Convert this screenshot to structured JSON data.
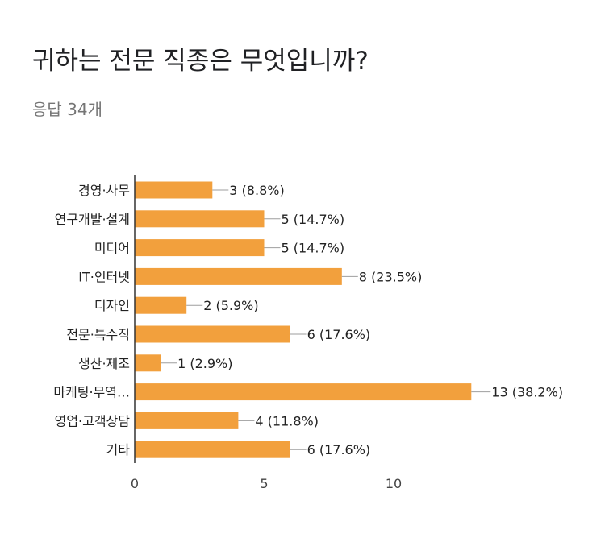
{
  "header": {
    "title": "귀하는 전문 직종은 무엇입니까?",
    "response_count": "응답 34개"
  },
  "chart_data": {
    "type": "bar",
    "orientation": "horizontal",
    "title": "",
    "xlabel": "",
    "ylabel": "",
    "xlim": [
      0,
      13
    ],
    "x_ticks": [
      0,
      5,
      10
    ],
    "grid": false,
    "legend": "none",
    "bar_color": "#f2a03d",
    "categories": [
      "경영·사무",
      "연구개발·설계",
      "미디어",
      "IT·인터넷",
      "디자인",
      "전문·특수직",
      "생산·제조",
      "마케팅·무역…",
      "영업·고객상담",
      "기타"
    ],
    "values": [
      3,
      5,
      5,
      8,
      2,
      6,
      1,
      13,
      4,
      6
    ],
    "value_labels": [
      "3 (8.8%)",
      "5 (14.7%)",
      "5 (14.7%)",
      "8 (23.5%)",
      "2 (5.9%)",
      "6 (17.6%)",
      "1 (2.9%)",
      "13 (38.2%)",
      "4 (11.8%)",
      "6 (17.6%)"
    ]
  }
}
